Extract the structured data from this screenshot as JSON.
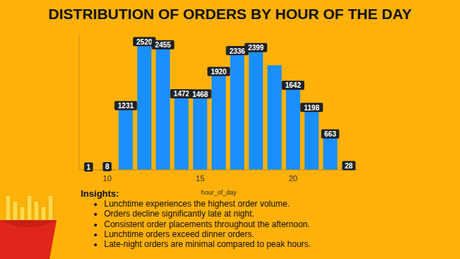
{
  "chart_data": {
    "type": "bar",
    "title": "DISTRIBUTION OF ORDERS BY HOUR OF THE DAY",
    "xlabel": "hour_of_day",
    "categories": [
      null,
      "10",
      null,
      null,
      null,
      null,
      "15",
      null,
      null,
      null,
      null,
      "20",
      null,
      null,
      null
    ],
    "values": [
      1,
      8,
      1231,
      2520,
      2455,
      1472,
      1468,
      1920,
      2336,
      2399,
      2100,
      1642,
      1198,
      663,
      28
    ],
    "value_labels": [
      "1",
      "8",
      "1231",
      "2520",
      "2455",
      "1472",
      "1468",
      "1920",
      "2336",
      "2399",
      null,
      "1642",
      "1198",
      "663",
      "28"
    ],
    "data_labels": true,
    "color": "#1a8fff",
    "ylim": [
      0,
      2700
    ],
    "tick_labels": "x",
    "grid": false
  },
  "insights": {
    "heading": "Insights:",
    "items": [
      "Lunchtime experiences the highest order volume.",
      "Orders decline significantly late at night.",
      "Consistent order placements throughout the afternoon.",
      "Lunchtime orders exceed dinner orders.",
      "Late-night orders are minimal compared to peak hours."
    ]
  }
}
